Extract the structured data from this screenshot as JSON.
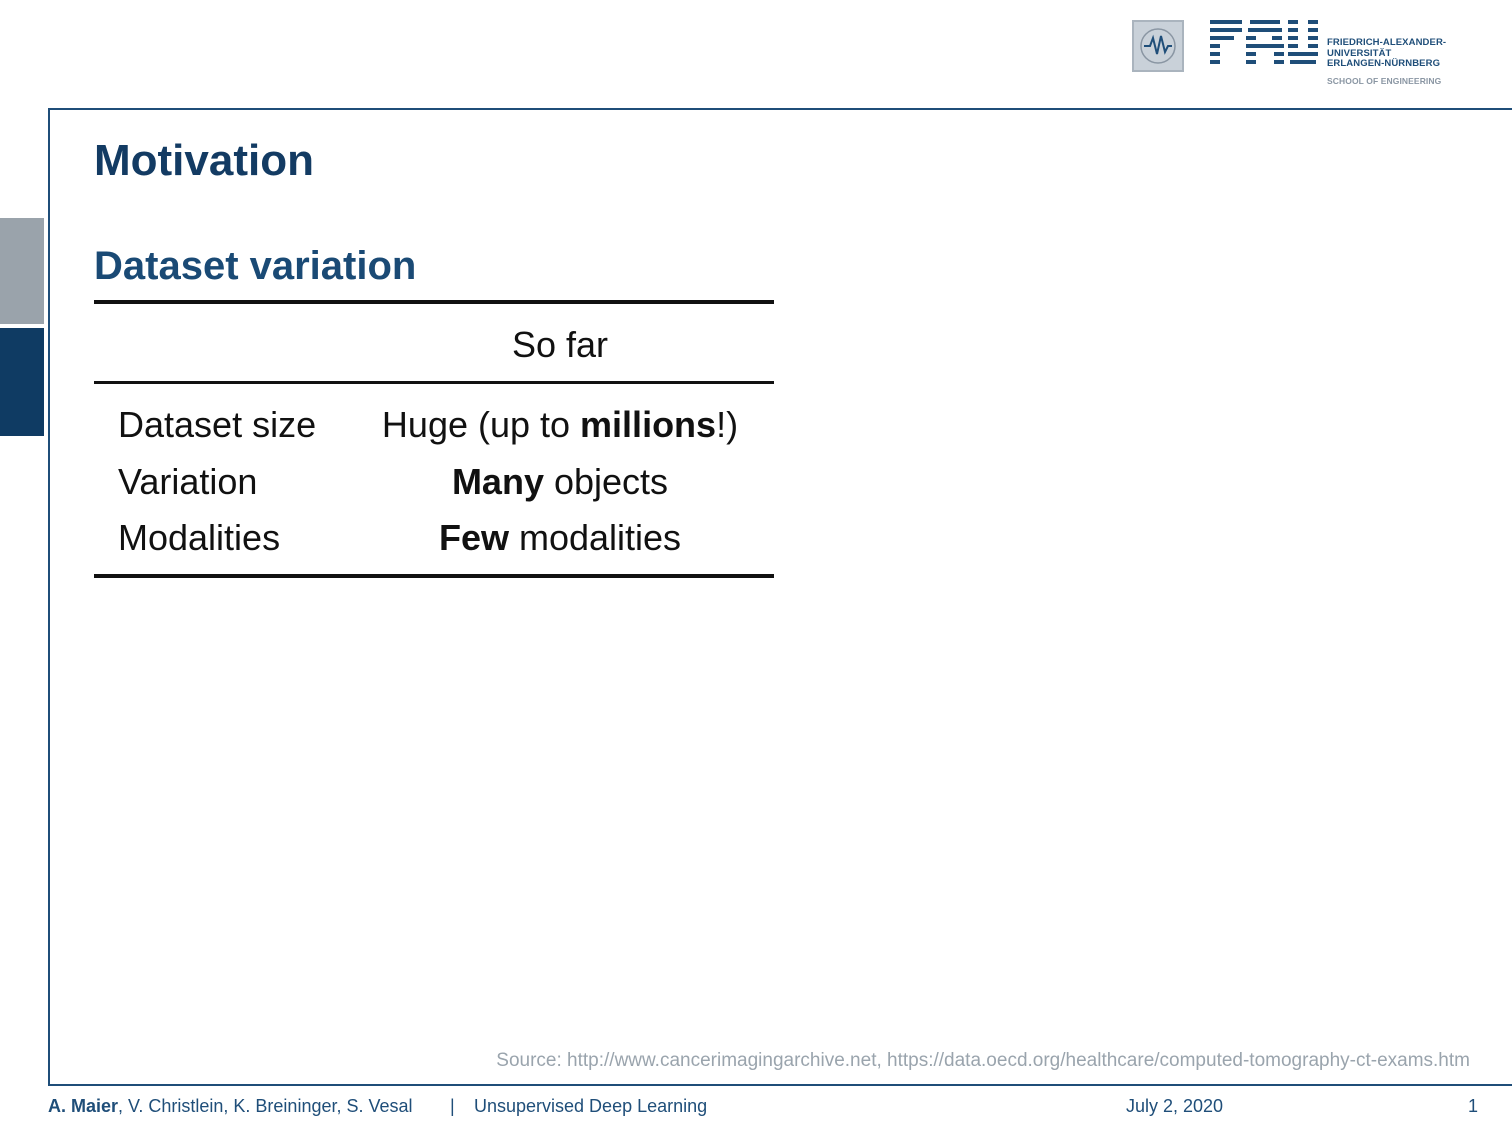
{
  "logo": {
    "letters": "FAU",
    "text_line1": "FRIEDRICH-ALEXANDER-",
    "text_line2": "UNIVERSITÄT",
    "text_line3": "ERLANGEN-NÜRNBERG",
    "school": "SCHOOL OF ENGINEERING"
  },
  "slide": {
    "title": "Motivation",
    "subtitle": "Dataset variation"
  },
  "table": {
    "column_header": "So far",
    "rows": [
      {
        "label": "Dataset size",
        "value_pre": "Huge (up to ",
        "value_bold": "millions",
        "value_post": "!)"
      },
      {
        "label": "Variation",
        "value_pre": "",
        "value_bold": "Many",
        "value_post": " objects"
      },
      {
        "label": "Modalities",
        "value_pre": "",
        "value_bold": "Few",
        "value_post": " modalities"
      }
    ]
  },
  "source": "Source: http://www.cancerimagingarchive.net, https://data.oecd.org/healthcare/computed-tomography-ct-exams.htm",
  "footer": {
    "author_main": "A. Maier",
    "authors_rest": ", V. Christlein, K. Breininger, S. Vesal",
    "separator": "|",
    "course": "Unsupervised Deep Learning",
    "date": "July 2, 2020",
    "page": "1"
  },
  "colors": {
    "accent": "#1f4e79",
    "title": "#133b63",
    "side_tab_grey": "#9aa3ab",
    "side_tab_blue": "#0f3b63",
    "source_text": "#9aa4ad"
  }
}
